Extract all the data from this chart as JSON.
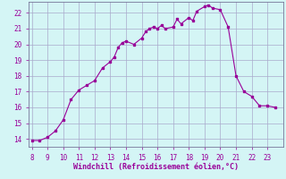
{
  "x": [
    8,
    8.5,
    9,
    9.5,
    10,
    10.5,
    11,
    11.5,
    12,
    12.5,
    13,
    13.25,
    13.5,
    13.75,
    14,
    14.5,
    15,
    15.25,
    15.5,
    15.75,
    16,
    16.25,
    16.5,
    17,
    17.25,
    17.5,
    18,
    18.25,
    18.5,
    19,
    19.25,
    19.5,
    20,
    20.5,
    21,
    21.5,
    22,
    22.5,
    23,
    23.5
  ],
  "y": [
    13.9,
    13.9,
    14.1,
    14.5,
    15.2,
    16.5,
    17.1,
    17.4,
    17.7,
    18.5,
    18.9,
    19.2,
    19.8,
    20.1,
    20.2,
    20.0,
    20.4,
    20.8,
    21.0,
    21.1,
    21.0,
    21.2,
    21.0,
    21.1,
    21.6,
    21.3,
    21.7,
    21.5,
    22.1,
    22.4,
    22.5,
    22.3,
    22.2,
    21.1,
    18.0,
    17.0,
    16.7,
    16.1,
    16.1,
    16.0
  ],
  "line_color": "#990099",
  "marker_color": "#990099",
  "bg_color": "#d4f5f5",
  "grid_color": "#aaaacc",
  "axis_color": "#777799",
  "tick_color": "#990099",
  "xlabel": "Windchill (Refroidissement éolien,°C)",
  "xlim": [
    7.8,
    24.0
  ],
  "ylim": [
    13.5,
    22.7
  ],
  "xticks": [
    8,
    9,
    10,
    11,
    12,
    13,
    14,
    15,
    16,
    17,
    18,
    19,
    20,
    21,
    22,
    23
  ],
  "yticks": [
    14,
    15,
    16,
    17,
    18,
    19,
    20,
    21,
    22
  ]
}
